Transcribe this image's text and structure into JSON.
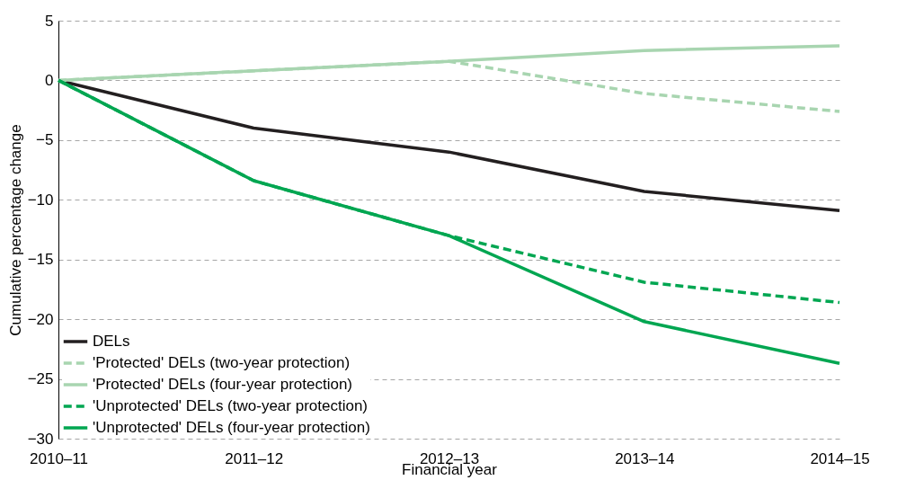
{
  "chart_data": {
    "type": "line",
    "xlabel": "Financial year",
    "ylabel": "Cumulative percentage change",
    "categories": [
      "2010–11",
      "2011–12",
      "2012–13",
      "2013–14",
      "2014–15"
    ],
    "ylim": [
      -30,
      5
    ],
    "yticks": [
      -30,
      -25,
      -20,
      -15,
      -10,
      -5,
      0,
      5
    ],
    "grid": "y",
    "legend": "bottom left",
    "marker": "none",
    "series": [
      {
        "name": "DELs",
        "color": "#231f20",
        "line_style": "solid",
        "values": [
          0,
          -4,
          -6,
          -9.3,
          -10.9
        ]
      },
      {
        "name": "'Protected' DELs (two-year protection)",
        "color": "#a8d5b0",
        "line_style": "dashed",
        "values": [
          0,
          0.8,
          1.6,
          -1.1,
          -2.6
        ]
      },
      {
        "name": "'Protected' DELs (four-year protection)",
        "color": "#a8d5b0",
        "line_style": "solid",
        "values": [
          0,
          0.8,
          1.6,
          2.5,
          2.9
        ]
      },
      {
        "name": "'Unprotected' DELs (two-year protection)",
        "color": "#00a651",
        "line_style": "dashed",
        "values": [
          0,
          -8.4,
          -13,
          -16.9,
          -18.6
        ]
      },
      {
        "name": "'Unprotected' DELs (four-year protection)",
        "color": "#00a651",
        "line_style": "solid",
        "values": [
          0,
          -8.4,
          -13,
          -20.2,
          -23.7
        ]
      }
    ]
  }
}
